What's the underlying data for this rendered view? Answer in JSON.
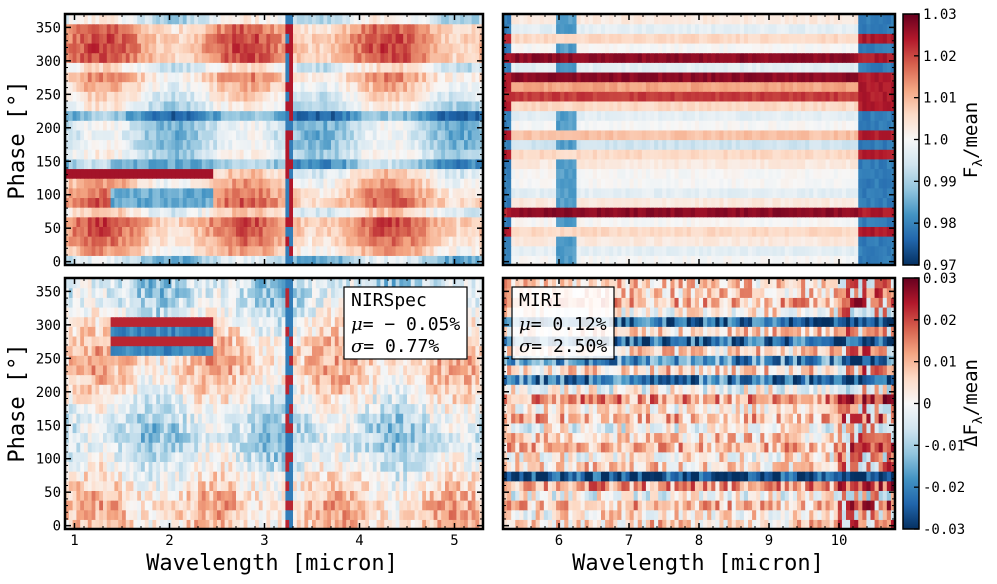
{
  "chart_data": {
    "type": "heatmap",
    "colormap": "RdBu_r",
    "panels": [
      {
        "id": "nirspec-flux",
        "instrument": "NIRSpec",
        "quantity": "normalized flux",
        "xlim": [
          0.9,
          5.3
        ],
        "ylim": [
          -5,
          370
        ]
      },
      {
        "id": "miri-flux",
        "instrument": "MIRI",
        "quantity": "normalized flux",
        "xlim": [
          5.2,
          10.8
        ],
        "ylim": [
          -5,
          370
        ]
      },
      {
        "id": "nirspec-resid",
        "instrument": "NIRSpec",
        "quantity": "residual",
        "xlim": [
          0.9,
          5.3
        ],
        "ylim": [
          -5,
          370
        ]
      },
      {
        "id": "miri-resid",
        "instrument": "MIRI",
        "quantity": "residual",
        "xlim": [
          5.2,
          10.8
        ],
        "ylim": [
          -5,
          370
        ]
      }
    ],
    "ylabel": "Phase [°]",
    "xlabel": "Wavelength [micron]",
    "y_ticks": [
      0,
      50,
      100,
      150,
      200,
      250,
      300,
      350
    ],
    "y_tick_labels": [
      "0",
      "50",
      "100",
      "150",
      "200",
      "250",
      "300",
      "350"
    ],
    "x_ticks_nirspec": [
      1,
      2,
      3,
      4,
      5
    ],
    "x_tick_labels_nirspec": [
      "1",
      "2",
      "3",
      "4",
      "5"
    ],
    "x_ticks_miri": [
      6,
      7,
      8,
      9,
      10
    ],
    "x_tick_labels_miri": [
      "6",
      "7",
      "8",
      "9",
      "10"
    ],
    "colorbar_top": {
      "label": "F",
      "label_sub": "λ",
      "label_rest": "/mean",
      "range": [
        0.97,
        1.03
      ],
      "ticks": [
        0.97,
        0.98,
        0.99,
        1.0,
        1.01,
        1.02,
        1.03
      ],
      "tick_labels": [
        "0.97",
        "0.98",
        "0.99",
        "1.0",
        "1.01",
        "1.02",
        "1.03"
      ]
    },
    "colorbar_bottom": {
      "label": "ΔF",
      "label_sub": "λ",
      "label_rest": "/mean",
      "range": [
        -0.03,
        0.03
      ],
      "ticks": [
        -0.03,
        -0.02,
        -0.01,
        0,
        0.01,
        0.02,
        0.03
      ],
      "tick_labels": [
        "-0.03",
        "-0.02",
        "-0.01",
        "0",
        "0.01",
        "0.02",
        "0.03"
      ]
    },
    "legends": [
      {
        "panel": "nirspec-resid",
        "title": "NIRSpec",
        "mu_label": "μ",
        "mu_value": "= − 0.05%",
        "sigma_label": "σ",
        "sigma_value": "= 0.77%",
        "mu": -0.05,
        "sigma": 0.77
      },
      {
        "panel": "miri-resid",
        "title": "MIRI",
        "mu_label": "μ",
        "mu_value": "= 0.12%",
        "sigma_label": "σ",
        "sigma_value": "= 2.50%",
        "mu": 0.12,
        "sigma": 2.5
      }
    ]
  },
  "colors": {
    "dark_red": "#67001f",
    "red": "#d6604d",
    "light_red": "#f4a582",
    "white": "#f7f7f7",
    "light_blue": "#92c5de",
    "blue": "#4393c3",
    "dark_blue": "#053061"
  }
}
